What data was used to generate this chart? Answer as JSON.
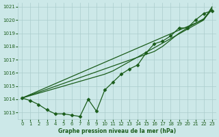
{
  "title": "Graphe pression niveau de la mer (hPa)",
  "bg_color": "#cce8e8",
  "grid_color": "#aacccc",
  "line_color": "#1a5c1a",
  "text_color": "#1a5c1a",
  "xlim": [
    -0.5,
    23.5
  ],
  "ylim": [
    1012.5,
    1021.3
  ],
  "yticks": [
    1013,
    1014,
    1015,
    1016,
    1017,
    1018,
    1019,
    1020,
    1021
  ],
  "xticks": [
    0,
    1,
    2,
    3,
    4,
    5,
    6,
    7,
    8,
    9,
    10,
    11,
    12,
    13,
    14,
    15,
    16,
    17,
    18,
    19,
    20,
    21,
    22,
    23
  ],
  "marked_series": [
    1014.1,
    1013.9,
    1013.6,
    1013.2,
    1012.9,
    1012.9,
    1012.8,
    1012.7,
    1014.0,
    1013.1,
    1014.7,
    1015.3,
    1015.9,
    1016.3,
    1016.6,
    1017.5,
    1018.2,
    1018.4,
    1018.8,
    1019.4,
    1019.4,
    1020.0,
    1020.5,
    1020.7
  ],
  "plain_series": [
    [
      1014.1,
      1014.37,
      1014.64,
      1014.91,
      1015.18,
      1015.45,
      1015.72,
      1015.99,
      1016.26,
      1016.53,
      1016.8,
      1017.07,
      1017.34,
      1017.61,
      1017.88,
      1018.15,
      1018.42,
      1018.69,
      1018.96,
      1019.23,
      1019.5,
      1019.77,
      1020.04,
      1020.8
    ],
    [
      1014.1,
      1014.32,
      1014.54,
      1014.76,
      1014.98,
      1015.2,
      1015.42,
      1015.64,
      1015.86,
      1016.08,
      1016.3,
      1016.52,
      1016.74,
      1016.96,
      1017.18,
      1017.4,
      1017.62,
      1018.0,
      1018.5,
      1019.0,
      1019.4,
      1019.75,
      1020.1,
      1020.9
    ],
    [
      1014.1,
      1014.28,
      1014.46,
      1014.64,
      1014.82,
      1015.0,
      1015.18,
      1015.36,
      1015.54,
      1015.72,
      1015.9,
      1016.15,
      1016.5,
      1016.85,
      1017.2,
      1017.55,
      1017.9,
      1018.25,
      1018.6,
      1018.95,
      1019.3,
      1019.65,
      1020.0,
      1021.0
    ]
  ],
  "marker": "D",
  "markersize": 2.5,
  "linewidth": 0.9
}
